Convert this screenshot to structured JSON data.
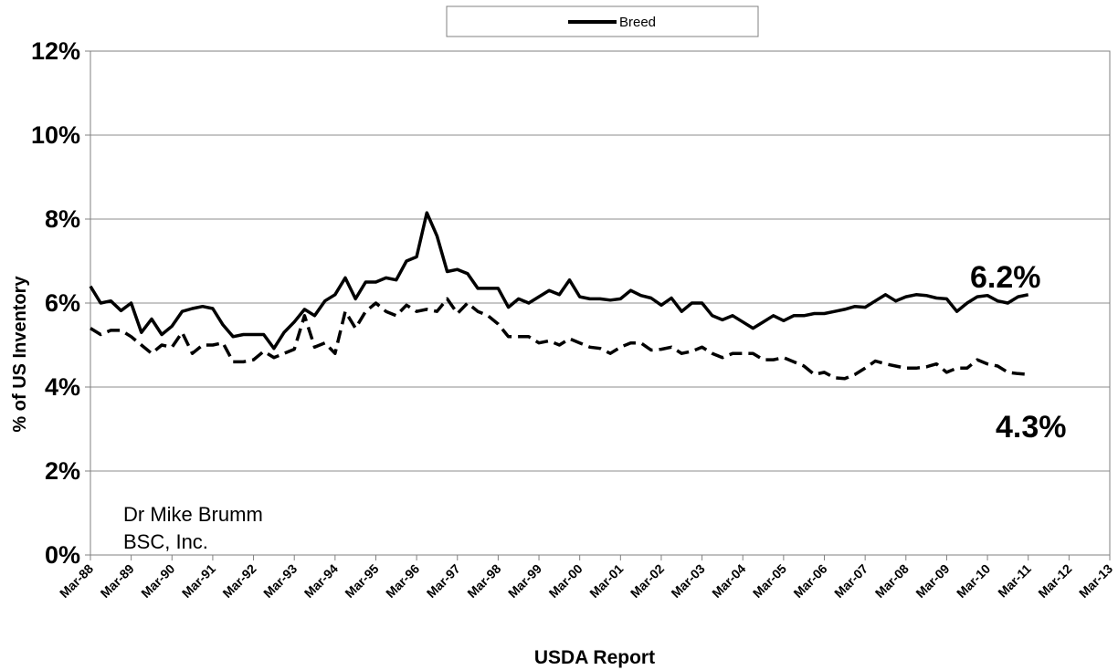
{
  "chart_data": {
    "type": "line",
    "title": "",
    "xlabel": "USDA Report",
    "ylabel": "% of US Inventory",
    "ylim": [
      0,
      12
    ],
    "ytick_labels": [
      "0%",
      "2%",
      "4%",
      "6%",
      "8%",
      "10%",
      "12%"
    ],
    "x_range": [
      1988.0,
      2013.0
    ],
    "categories": [
      "Mar-88",
      "Mar-89",
      "Mar-90",
      "Mar-91",
      "Mar-92",
      "Mar-93",
      "Mar-94",
      "Mar-95",
      "Mar-96",
      "Mar-97",
      "Mar-98",
      "Mar-99",
      "Mar-00",
      "Mar-01",
      "Mar-02",
      "Mar-03",
      "Mar-04",
      "Mar-05",
      "Mar-06",
      "Mar-07",
      "Mar-08",
      "Mar-09",
      "Mar-10",
      "Mar-11",
      "Mar-12",
      "Mar-13"
    ],
    "grid": true,
    "legend": {
      "position": "top-center",
      "entries": [
        "Breed"
      ]
    },
    "annotations": [
      {
        "text": "6.2%",
        "x": 2011.45,
        "y": 6.62
      },
      {
        "text": "4.3%",
        "x": 2011.4,
        "y": 2.93
      }
    ],
    "credit_lines": [
      "Dr Mike Brumm",
      "BSC, Inc."
    ],
    "series": [
      {
        "name": "Breed",
        "style": "solid",
        "color": "#000000",
        "x": [
          1988.0,
          1988.25,
          1988.5,
          1988.75,
          1989.0,
          1989.25,
          1989.5,
          1989.75,
          1990.0,
          1990.25,
          1990.5,
          1990.75,
          1991.0,
          1991.25,
          1991.5,
          1991.75,
          1992.0,
          1992.25,
          1992.5,
          1992.75,
          1993.0,
          1993.25,
          1993.5,
          1993.75,
          1994.0,
          1994.25,
          1994.5,
          1994.75,
          1995.0,
          1995.25,
          1995.5,
          1995.75,
          1996.0,
          1996.25,
          1996.5,
          1996.75,
          1997.0,
          1997.25,
          1997.5,
          1997.75,
          1998.0,
          1998.25,
          1998.5,
          1998.75,
          1999.0,
          1999.25,
          1999.5,
          1999.75,
          2000.0,
          2000.25,
          2000.5,
          2000.75,
          2001.0,
          2001.25,
          2001.5,
          2001.75,
          2002.0,
          2002.25,
          2002.5,
          2002.75,
          2003.0,
          2003.25,
          2003.5,
          2003.75,
          2004.0,
          2004.25,
          2004.5,
          2004.75,
          2005.0,
          2005.25,
          2005.5,
          2005.75,
          2006.0,
          2006.25,
          2006.5,
          2006.75,
          2007.0,
          2007.25,
          2007.5,
          2007.75,
          2008.0,
          2008.25,
          2008.5,
          2008.75,
          2009.0,
          2009.25,
          2009.5,
          2009.75,
          2010.0,
          2010.25,
          2010.5,
          2010.75,
          2011.0
        ],
        "values": [
          6.4,
          6.0,
          6.05,
          5.82,
          6.0,
          5.3,
          5.62,
          5.25,
          5.45,
          5.8,
          5.87,
          5.92,
          5.87,
          5.48,
          5.2,
          5.25,
          5.25,
          5.25,
          4.92,
          5.3,
          5.55,
          5.85,
          5.7,
          6.05,
          6.2,
          6.6,
          6.1,
          6.5,
          6.5,
          6.6,
          6.55,
          7.0,
          7.1,
          8.15,
          7.6,
          6.75,
          6.8,
          6.7,
          6.35,
          6.35,
          6.35,
          5.9,
          6.1,
          6.0,
          6.15,
          6.3,
          6.2,
          6.55,
          6.15,
          6.1,
          6.1,
          6.07,
          6.1,
          6.3,
          6.18,
          6.12,
          5.95,
          6.12,
          5.8,
          6.0,
          6.0,
          5.7,
          5.6,
          5.7,
          5.55,
          5.4,
          5.55,
          5.7,
          5.58,
          5.7,
          5.7,
          5.75,
          5.75,
          5.8,
          5.85,
          5.92,
          5.9,
          6.05,
          6.2,
          6.05,
          6.15,
          6.2,
          6.18,
          6.12,
          6.1,
          5.8,
          6.0,
          6.15,
          6.18,
          6.05,
          6.0,
          6.15,
          6.2
        ]
      },
      {
        "name": "",
        "style": "dashed",
        "color": "#000000",
        "x": [
          1988.0,
          1988.25,
          1988.5,
          1988.75,
          1989.0,
          1989.25,
          1989.5,
          1989.75,
          1990.0,
          1990.25,
          1990.5,
          1990.75,
          1991.0,
          1991.25,
          1991.5,
          1991.75,
          1992.0,
          1992.25,
          1992.5,
          1992.75,
          1993.0,
          1993.25,
          1993.5,
          1993.75,
          1994.0,
          1994.25,
          1994.5,
          1994.75,
          1995.0,
          1995.25,
          1995.5,
          1995.75,
          1996.0,
          1996.25,
          1996.5,
          1996.75,
          1997.0,
          1997.25,
          1997.5,
          1997.75,
          1998.0,
          1998.25,
          1998.5,
          1998.75,
          1999.0,
          1999.25,
          1999.5,
          1999.75,
          2000.0,
          2000.25,
          2000.5,
          2000.75,
          2001.0,
          2001.25,
          2001.5,
          2001.75,
          2002.0,
          2002.25,
          2002.5,
          2002.75,
          2003.0,
          2003.25,
          2003.5,
          2003.75,
          2004.0,
          2004.25,
          2004.5,
          2004.75,
          2005.0,
          2005.25,
          2005.5,
          2005.75,
          2006.0,
          2006.25,
          2006.5,
          2006.75,
          2007.0,
          2007.25,
          2007.5,
          2007.75,
          2008.0,
          2008.25,
          2008.5,
          2008.75,
          2009.0,
          2009.25,
          2009.5,
          2009.75,
          2010.0,
          2010.25,
          2010.5,
          2010.75,
          2011.0
        ],
        "values": [
          5.4,
          5.25,
          5.35,
          5.35,
          5.2,
          5.0,
          4.8,
          5.0,
          4.95,
          5.3,
          4.8,
          5.0,
          5.0,
          5.05,
          4.6,
          4.6,
          4.65,
          4.85,
          4.7,
          4.8,
          4.9,
          5.7,
          4.95,
          5.05,
          4.8,
          5.8,
          5.4,
          5.8,
          6.0,
          5.8,
          5.7,
          5.95,
          5.8,
          5.85,
          5.8,
          6.1,
          5.75,
          6.0,
          5.8,
          5.7,
          5.5,
          5.2,
          5.2,
          5.2,
          5.05,
          5.1,
          5.0,
          5.15,
          5.05,
          4.95,
          4.92,
          4.8,
          4.95,
          5.05,
          5.05,
          4.88,
          4.9,
          4.95,
          4.8,
          4.85,
          4.95,
          4.8,
          4.7,
          4.8,
          4.8,
          4.8,
          4.65,
          4.65,
          4.7,
          4.6,
          4.5,
          4.3,
          4.35,
          4.22,
          4.2,
          4.3,
          4.45,
          4.62,
          4.55,
          4.5,
          4.45,
          4.45,
          4.48,
          4.55,
          4.35,
          4.45,
          4.45,
          4.65,
          4.55,
          4.5,
          4.35,
          4.32,
          4.3
        ]
      }
    ]
  }
}
